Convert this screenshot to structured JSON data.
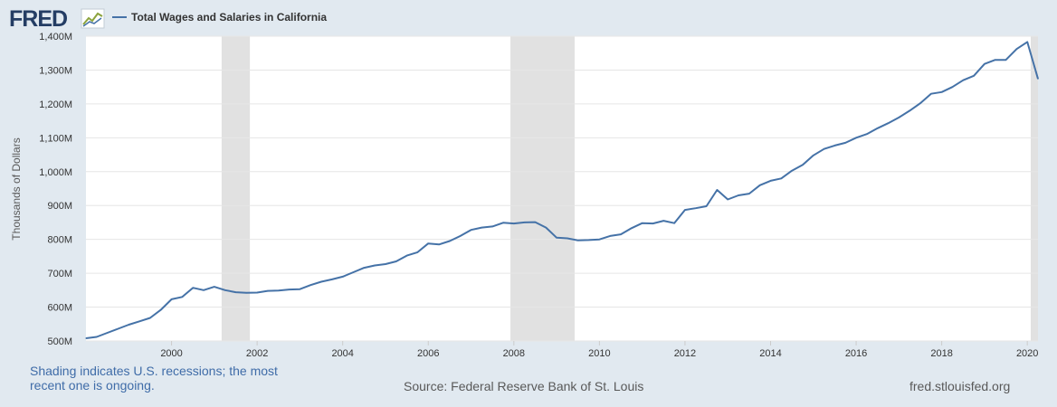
{
  "brand": {
    "name": "FRED"
  },
  "legend": {
    "label": "Total Wages and Salaries in California",
    "color": "#4572a7"
  },
  "footer": {
    "note": "Shading indicates U.S. recessions; the most recent one is ongoing.",
    "source": "Source: Federal Reserve Bank of St. Louis",
    "url": "fred.stlouisfed.org"
  },
  "chart_data": {
    "type": "line",
    "title": "Total Wages and Salaries in California",
    "xlabel": "",
    "ylabel": "Thousands of Dollars",
    "grid": true,
    "legend_position": "top-left",
    "xlim": [
      1998.0,
      2020.25
    ],
    "ylim": [
      500,
      1400
    ],
    "x_ticks": [
      2000,
      2002,
      2004,
      2006,
      2008,
      2010,
      2012,
      2014,
      2016,
      2018,
      2020
    ],
    "x_tick_labels": [
      "2000",
      "2002",
      "2004",
      "2006",
      "2008",
      "2010",
      "2012",
      "2014",
      "2016",
      "2018",
      "2020"
    ],
    "y_ticks": [
      500,
      600,
      700,
      800,
      900,
      1000,
      1100,
      1200,
      1300,
      1400
    ],
    "y_tick_labels": [
      "500M",
      "600M",
      "700M",
      "800M",
      "900M",
      "1,000M",
      "1,100M",
      "1,200M",
      "1,300M",
      "1,400M"
    ],
    "recessions": [
      [
        2001.17,
        2001.83
      ],
      [
        2007.92,
        2009.42
      ],
      [
        2020.08,
        2020.25
      ]
    ],
    "colors": {
      "line": "#4572a7",
      "recession": "#e1e1e1",
      "grid": "#e6e6e6"
    },
    "series": [
      {
        "name": "Total Wages and Salaries in California",
        "x": [
          1998.0,
          1998.25,
          1998.5,
          1998.75,
          1999.0,
          1999.25,
          1999.5,
          1999.75,
          2000.0,
          2000.25,
          2000.5,
          2000.75,
          2001.0,
          2001.25,
          2001.5,
          2001.75,
          2002.0,
          2002.25,
          2002.5,
          2002.75,
          2003.0,
          2003.25,
          2003.5,
          2003.75,
          2004.0,
          2004.25,
          2004.5,
          2004.75,
          2005.0,
          2005.25,
          2005.5,
          2005.75,
          2006.0,
          2006.25,
          2006.5,
          2006.75,
          2007.0,
          2007.25,
          2007.5,
          2007.75,
          2008.0,
          2008.25,
          2008.5,
          2008.75,
          2009.0,
          2009.25,
          2009.5,
          2009.75,
          2010.0,
          2010.25,
          2010.5,
          2010.75,
          2011.0,
          2011.25,
          2011.5,
          2011.75,
          2012.0,
          2012.25,
          2012.5,
          2012.75,
          2013.0,
          2013.25,
          2013.5,
          2013.75,
          2014.0,
          2014.25,
          2014.5,
          2014.75,
          2015.0,
          2015.25,
          2015.5,
          2015.75,
          2016.0,
          2016.25,
          2016.5,
          2016.75,
          2017.0,
          2017.25,
          2017.5,
          2017.75,
          2018.0,
          2018.25,
          2018.5,
          2018.75,
          2019.0,
          2019.25,
          2019.5,
          2019.75,
          2020.0,
          2020.25
        ],
        "y": [
          508,
          512,
          524,
          536,
          548,
          558,
          568,
          592,
          623,
          630,
          657,
          650,
          660,
          650,
          644,
          642,
          643,
          648,
          649,
          652,
          653,
          665,
          675,
          682,
          690,
          703,
          716,
          723,
          727,
          735,
          752,
          762,
          788,
          785,
          795,
          810,
          828,
          835,
          838,
          849,
          847,
          850,
          851,
          835,
          805,
          803,
          797,
          798,
          800,
          810,
          815,
          833,
          848,
          847,
          855,
          848,
          887,
          892,
          898,
          946,
          918,
          930,
          935,
          960,
          973,
          980,
          1003,
          1020,
          1048,
          1067,
          1077,
          1085,
          1100,
          1111,
          1128,
          1143,
          1160,
          1180,
          1202,
          1230,
          1235,
          1250,
          1270,
          1283,
          1318,
          1330,
          1330,
          1362,
          1383,
          1274
        ]
      }
    ]
  }
}
